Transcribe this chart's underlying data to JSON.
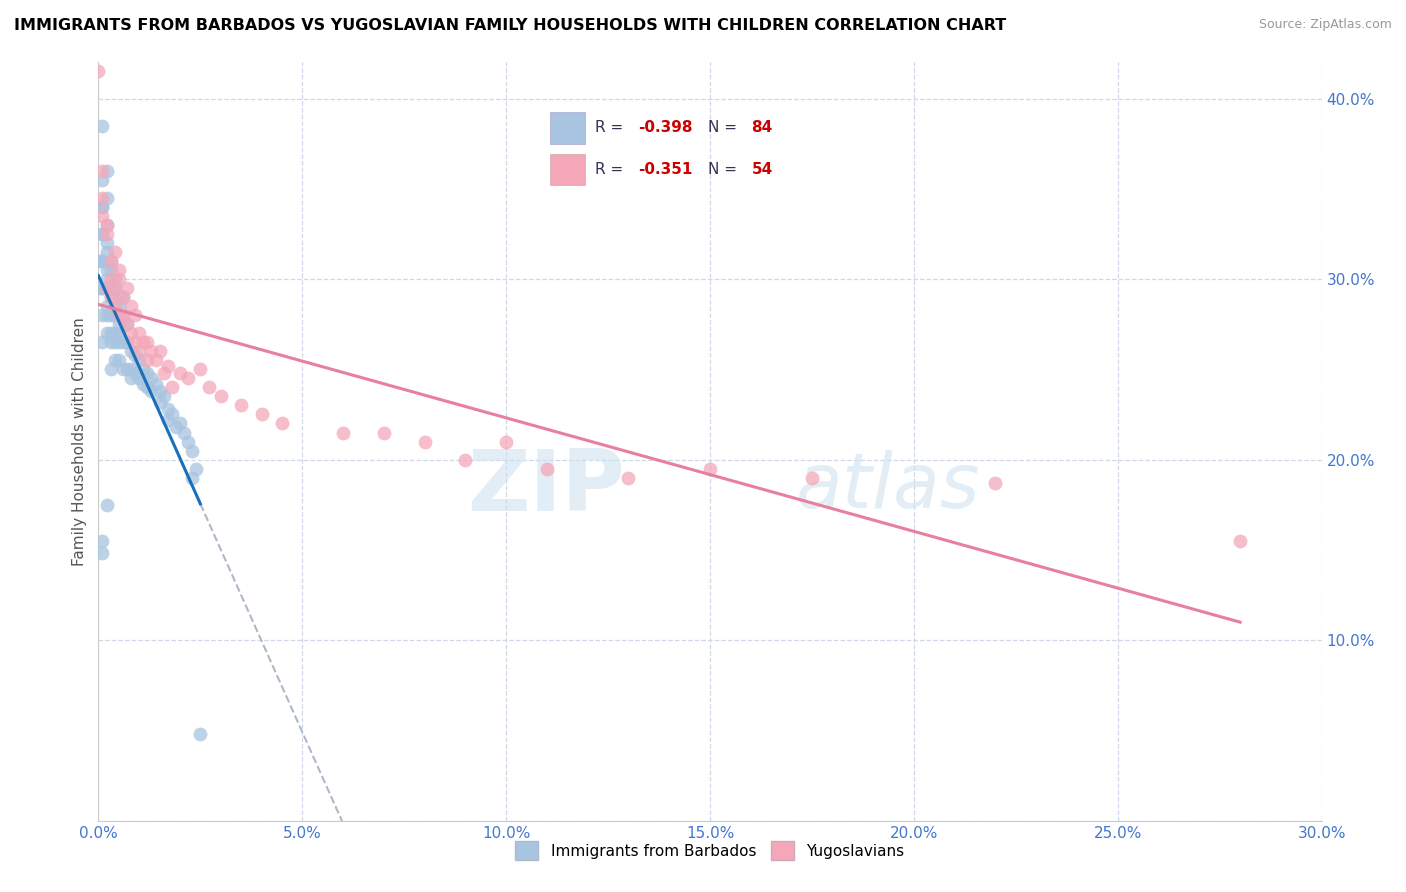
{
  "title": "IMMIGRANTS FROM BARBADOS VS YUGOSLAVIAN FAMILY HOUSEHOLDS WITH CHILDREN CORRELATION CHART",
  "source": "Source: ZipAtlas.com",
  "ylabel": "Family Households with Children",
  "xlim": [
    0.0,
    0.3
  ],
  "ylim": [
    0.0,
    0.42
  ],
  "xticks": [
    0.0,
    0.05,
    0.1,
    0.15,
    0.2,
    0.25,
    0.3
  ],
  "yticks": [
    0.0,
    0.1,
    0.2,
    0.3,
    0.4
  ],
  "legend_r_blue": "-0.398",
  "legend_n_blue": "84",
  "legend_r_pink": "-0.351",
  "legend_n_pink": "54",
  "blue_color": "#a8c4e0",
  "pink_color": "#f4a7b9",
  "blue_line_color": "#1a6fba",
  "pink_line_color": "#e87fa0",
  "dashed_line_color": "#b0b8c8",
  "watermark_zip": "ZIP",
  "watermark_atlas": "atlas",
  "tick_color": "#4477cc",
  "blue_scatter_x": [
    0.0,
    0.0,
    0.001,
    0.001,
    0.001,
    0.001,
    0.001,
    0.001,
    0.001,
    0.001,
    0.001,
    0.001,
    0.001,
    0.001,
    0.002,
    0.002,
    0.002,
    0.002,
    0.002,
    0.002,
    0.002,
    0.002,
    0.002,
    0.002,
    0.002,
    0.003,
    0.003,
    0.003,
    0.003,
    0.003,
    0.003,
    0.003,
    0.003,
    0.004,
    0.004,
    0.004,
    0.004,
    0.004,
    0.004,
    0.004,
    0.005,
    0.005,
    0.005,
    0.005,
    0.005,
    0.005,
    0.006,
    0.006,
    0.006,
    0.006,
    0.007,
    0.007,
    0.007,
    0.008,
    0.008,
    0.008,
    0.009,
    0.009,
    0.01,
    0.01,
    0.011,
    0.011,
    0.012,
    0.012,
    0.013,
    0.013,
    0.014,
    0.015,
    0.015,
    0.016,
    0.017,
    0.017,
    0.018,
    0.019,
    0.02,
    0.021,
    0.022,
    0.023,
    0.024,
    0.025,
    0.001,
    0.002,
    0.001,
    0.023
  ],
  "blue_scatter_y": [
    0.31,
    0.295,
    0.385,
    0.355,
    0.34,
    0.325,
    0.31,
    0.295,
    0.28,
    0.265,
    0.295,
    0.31,
    0.325,
    0.34,
    0.36,
    0.345,
    0.33,
    0.315,
    0.3,
    0.285,
    0.27,
    0.305,
    0.295,
    0.28,
    0.32,
    0.295,
    0.28,
    0.305,
    0.265,
    0.25,
    0.27,
    0.29,
    0.31,
    0.285,
    0.27,
    0.295,
    0.255,
    0.3,
    0.265,
    0.28,
    0.285,
    0.27,
    0.255,
    0.29,
    0.275,
    0.265,
    0.278,
    0.265,
    0.25,
    0.29,
    0.265,
    0.25,
    0.275,
    0.26,
    0.25,
    0.245,
    0.258,
    0.248,
    0.255,
    0.245,
    0.25,
    0.242,
    0.248,
    0.24,
    0.245,
    0.238,
    0.242,
    0.238,
    0.232,
    0.235,
    0.228,
    0.222,
    0.225,
    0.218,
    0.22,
    0.215,
    0.21,
    0.205,
    0.195,
    0.048,
    0.155,
    0.175,
    0.148,
    0.19
  ],
  "pink_scatter_x": [
    0.0,
    0.001,
    0.001,
    0.001,
    0.002,
    0.002,
    0.002,
    0.003,
    0.003,
    0.003,
    0.004,
    0.004,
    0.004,
    0.005,
    0.005,
    0.005,
    0.006,
    0.006,
    0.007,
    0.007,
    0.008,
    0.008,
    0.009,
    0.009,
    0.01,
    0.01,
    0.011,
    0.012,
    0.012,
    0.013,
    0.014,
    0.015,
    0.016,
    0.017,
    0.018,
    0.02,
    0.022,
    0.025,
    0.027,
    0.03,
    0.035,
    0.04,
    0.045,
    0.06,
    0.07,
    0.08,
    0.09,
    0.1,
    0.11,
    0.13,
    0.15,
    0.175,
    0.22,
    0.28
  ],
  "pink_scatter_y": [
    0.415,
    0.36,
    0.335,
    0.345,
    0.33,
    0.325,
    0.295,
    0.31,
    0.3,
    0.29,
    0.315,
    0.295,
    0.285,
    0.305,
    0.28,
    0.3,
    0.29,
    0.28,
    0.295,
    0.275,
    0.285,
    0.27,
    0.28,
    0.265,
    0.27,
    0.26,
    0.265,
    0.265,
    0.255,
    0.26,
    0.255,
    0.26,
    0.248,
    0.252,
    0.24,
    0.248,
    0.245,
    0.25,
    0.24,
    0.235,
    0.23,
    0.225,
    0.22,
    0.215,
    0.215,
    0.21,
    0.2,
    0.21,
    0.195,
    0.19,
    0.195,
    0.19,
    0.187,
    0.155
  ]
}
